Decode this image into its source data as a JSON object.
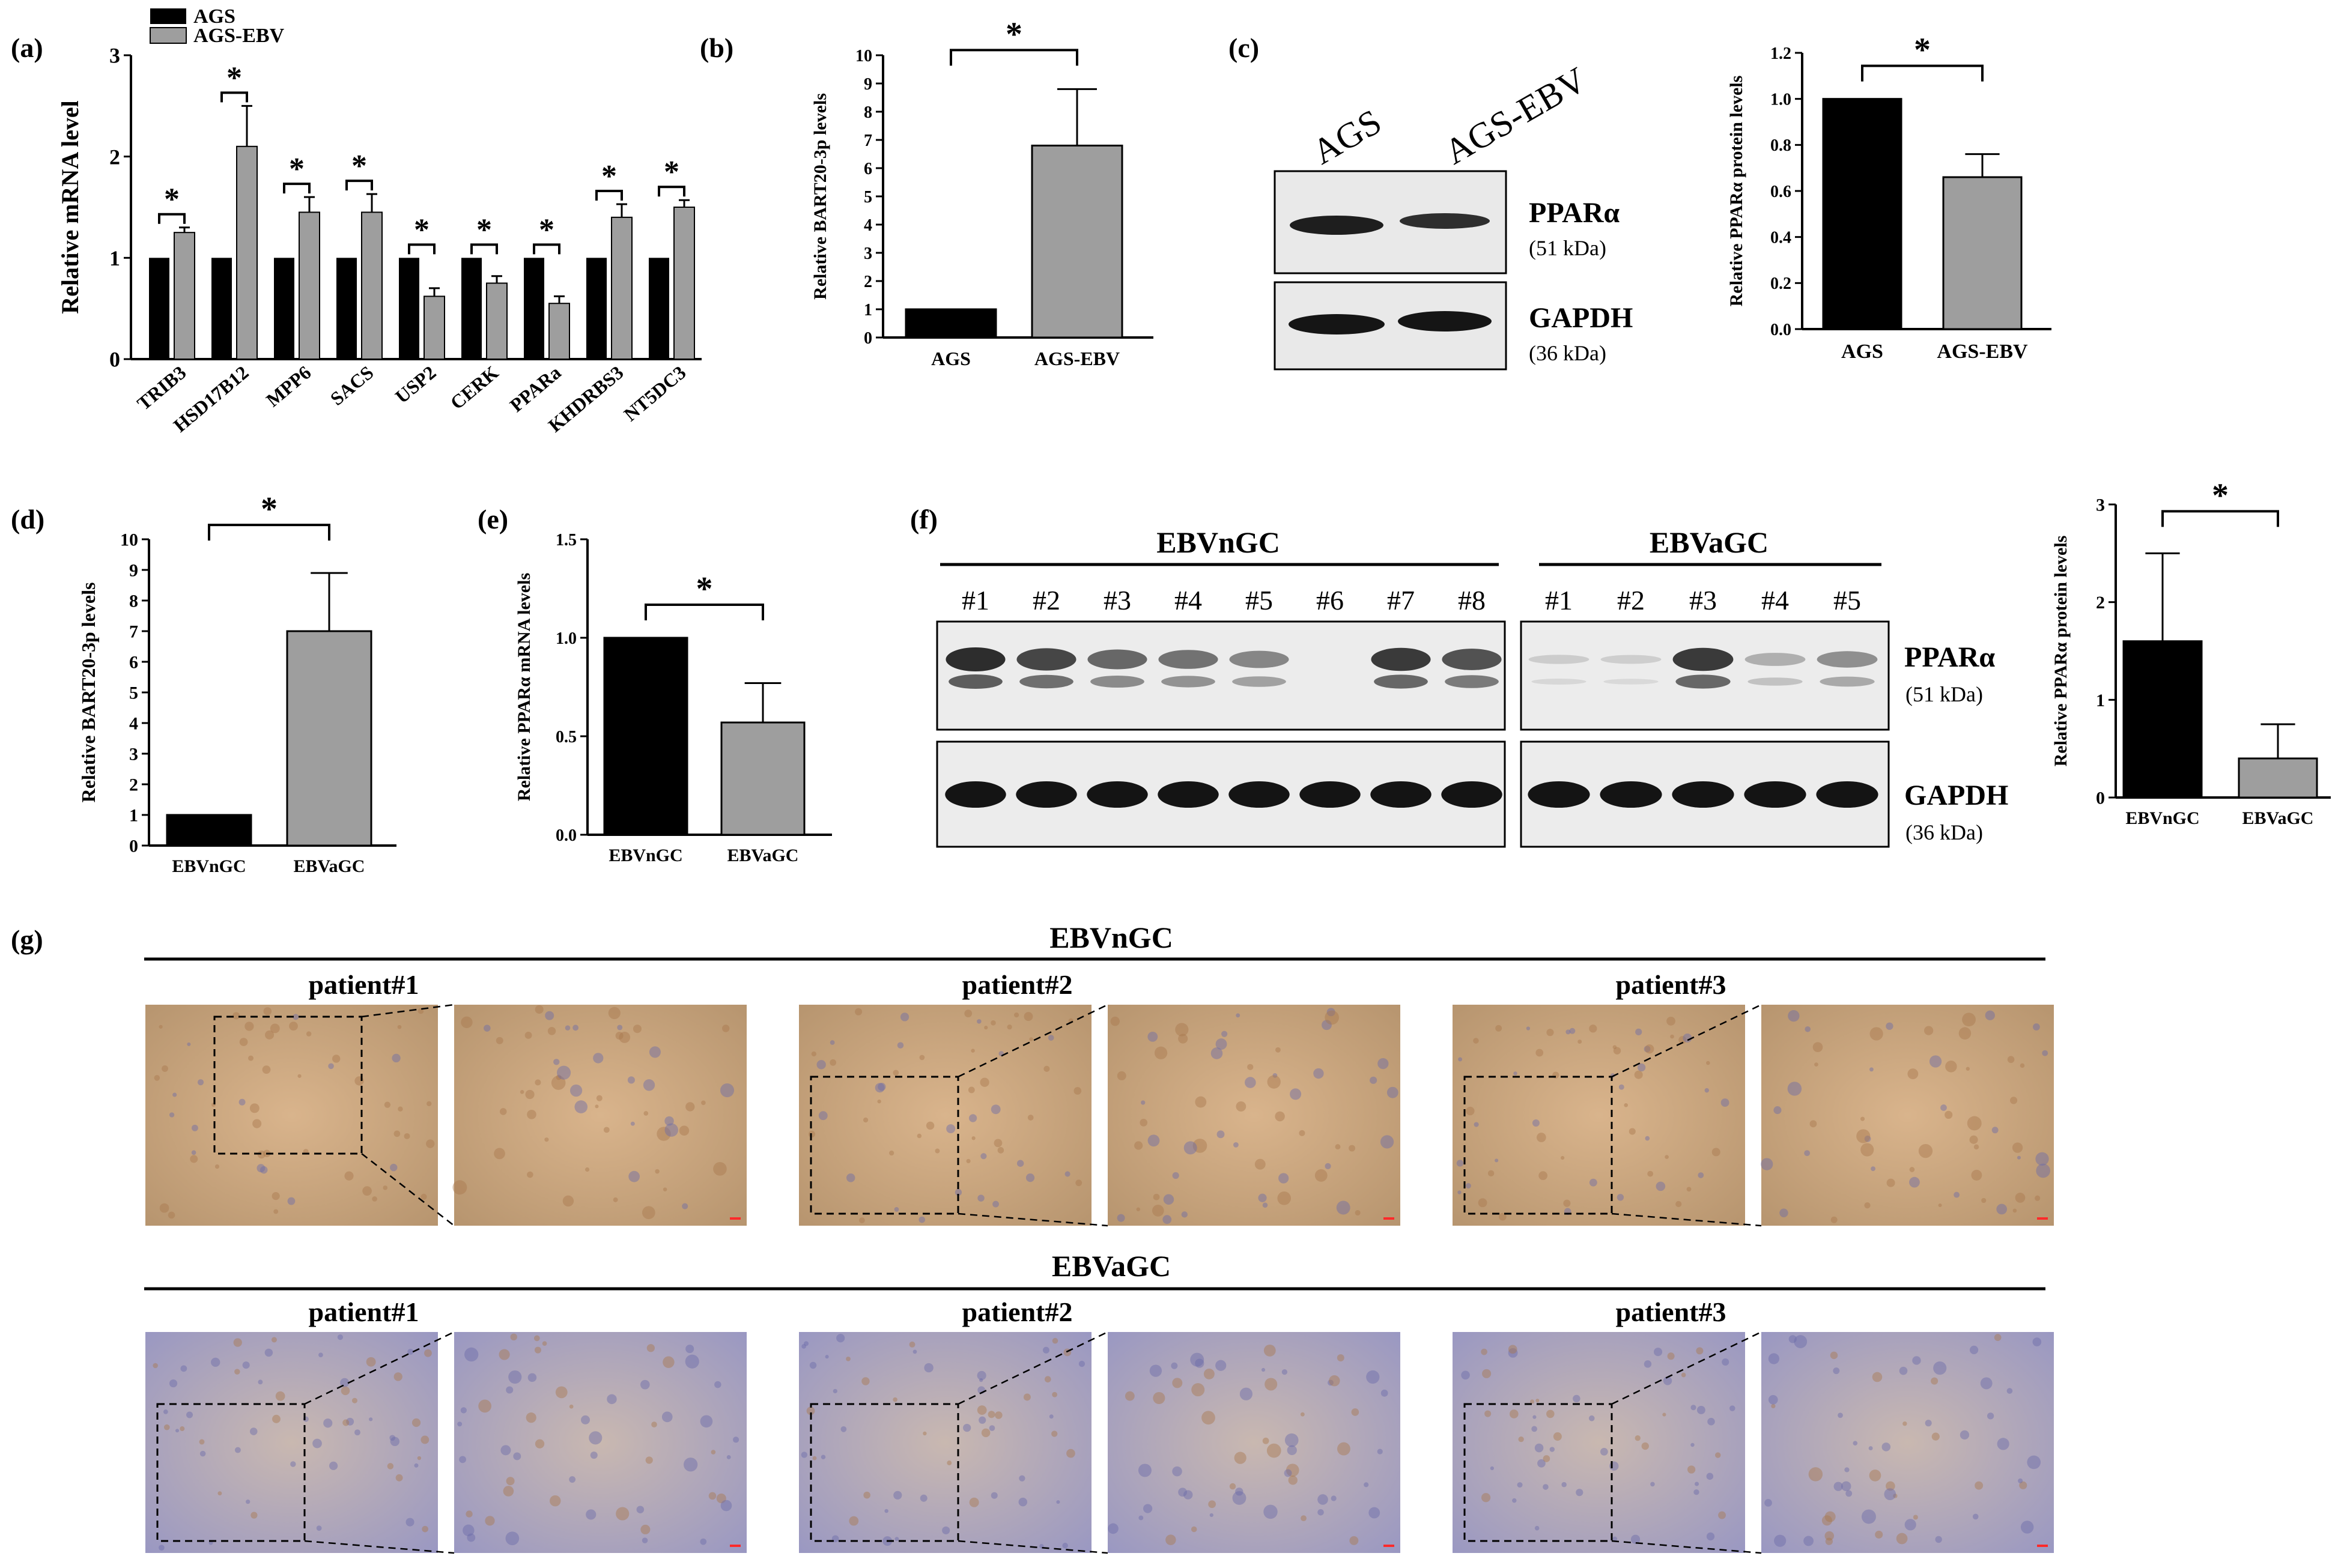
{
  "panel_letters": {
    "a": "(a)",
    "b": "(b)",
    "c": "(c)",
    "d": "(d)",
    "e": "(e)",
    "f": "(f)",
    "g": "(g)"
  },
  "colors": {
    "black_bar": "#000000",
    "grey_bar": "#9e9e9e",
    "blot_bg": "#e9e9e9",
    "stain_brown": "#c8a27a",
    "stain_blue": "#8c8fc0",
    "scale_bar": "#ff2a2a"
  },
  "panel_a": {
    "legend": [
      "AGS",
      "AGS-EBV"
    ],
    "ylabel": "Relative mRNA level",
    "yticks": [
      "0",
      "1",
      "2",
      "3"
    ],
    "star": "*"
  },
  "panel_b": {
    "ylabel": "Relative BART20-3p levels",
    "star": "*"
  },
  "panel_c_blot": {
    "columns": [
      "AGS",
      "AGS-EBV"
    ],
    "bands": [
      {
        "name": "PPARα",
        "size": "(51 kDa)"
      },
      {
        "name": "GAPDH",
        "size": "(36 kDa)"
      }
    ]
  },
  "panel_c_chart": {
    "ylabel": "Relative PPARα protein levels",
    "star": "*"
  },
  "panel_d": {
    "ylabel": "Relative BART20-3p levels",
    "star": "*"
  },
  "panel_e": {
    "ylabel": "Relative PPARα mRNA levels",
    "star": "*"
  },
  "panel_f_blot": {
    "groups": [
      {
        "title": "EBVnGC",
        "lanes": [
          "#1",
          "#2",
          "#3",
          "#4",
          "#5",
          "#6",
          "#7",
          "#8"
        ],
        "ppar": [
          1.0,
          0.9,
          0.75,
          0.7,
          0.6,
          0.05,
          0.95,
          0.85
        ]
      },
      {
        "title": "EBVaGC",
        "lanes": [
          "#1",
          "#2",
          "#3",
          "#4",
          "#5"
        ],
        "ppar": [
          0.12,
          0.1,
          0.95,
          0.35,
          0.55
        ]
      }
    ],
    "bands": [
      {
        "name": "PPARα",
        "size": "(51 kDa)"
      },
      {
        "name": "GAPDH",
        "size": "(36 kDa)"
      }
    ]
  },
  "panel_f_chart": {
    "ylabel": "Relative PPARα protein levels",
    "star": "*"
  },
  "panel_g": {
    "rows": [
      {
        "title": "EBVnGC",
        "patients": [
          "patient#1",
          "patient#2",
          "patient#3"
        ]
      },
      {
        "title": "EBVaGC",
        "patients": [
          "patient#1",
          "patient#2",
          "patient#3"
        ]
      }
    ]
  },
  "chart_data": [
    {
      "type": "bar",
      "panel": "a",
      "categories": [
        "TRIB3",
        "HSD17B12",
        "MPP6",
        "SACS",
        "USP2",
        "CERK",
        "PPARa",
        "KHDRBS3",
        "NT5DC3"
      ],
      "series": [
        {
          "name": "AGS",
          "values": [
            1,
            1,
            1,
            1,
            1,
            1,
            1,
            1,
            1
          ]
        },
        {
          "name": "AGS-EBV",
          "values": [
            1.25,
            2.1,
            1.45,
            1.45,
            0.62,
            0.75,
            0.55,
            1.4,
            1.5
          ],
          "errors": [
            0.05,
            0.4,
            0.15,
            0.18,
            0.08,
            0.07,
            0.07,
            0.13,
            0.07
          ]
        }
      ],
      "ylabel": "Relative mRNA level",
      "ylim": [
        0,
        3
      ]
    },
    {
      "type": "bar",
      "panel": "b",
      "categories": [
        "AGS",
        "AGS-EBV"
      ],
      "values": [
        1,
        6.8
      ],
      "errors": [
        0,
        2.0
      ],
      "ylabel": "Relative BART20-3p levels",
      "ylim": [
        0,
        10
      ],
      "yticks": [
        "0",
        "1",
        "2",
        "3",
        "4",
        "5",
        "6",
        "7",
        "8",
        "9",
        "10"
      ]
    },
    {
      "type": "bar",
      "panel": "c",
      "categories": [
        "AGS",
        "AGS-EBV"
      ],
      "values": [
        1.0,
        0.66
      ],
      "errors": [
        0,
        0.1
      ],
      "ylabel": "Relative PPARα protein levels",
      "ylim": [
        0,
        1.2
      ],
      "yticks": [
        "0.0",
        "0.2",
        "0.4",
        "0.6",
        "0.8",
        "1.0",
        "1.2"
      ]
    },
    {
      "type": "bar",
      "panel": "d",
      "categories": [
        "EBVnGC",
        "EBVaGC"
      ],
      "values": [
        1,
        7.0
      ],
      "errors": [
        0,
        1.9
      ],
      "ylabel": "Relative BART20-3p levels",
      "ylim": [
        0,
        10
      ],
      "yticks": [
        "0",
        "1",
        "2",
        "3",
        "4",
        "5",
        "6",
        "7",
        "8",
        "9",
        "10"
      ]
    },
    {
      "type": "bar",
      "panel": "e",
      "categories": [
        "EBVnGC",
        "EBVaGC"
      ],
      "values": [
        1.0,
        0.57
      ],
      "errors": [
        0,
        0.2
      ],
      "ylabel": "Relative PPARα mRNA levels",
      "ylim": [
        0,
        1.5
      ],
      "yticks": [
        "0.0",
        "0.5",
        "1.0",
        "1.5"
      ]
    },
    {
      "type": "bar",
      "panel": "f",
      "categories": [
        "EBVnGC",
        "EBVaGC"
      ],
      "values": [
        1.6,
        0.4
      ],
      "errors": [
        0.9,
        0.35
      ],
      "ylabel": "Relative PPARα protein levels",
      "ylim": [
        0,
        3
      ],
      "yticks": [
        "0",
        "1",
        "2",
        "3"
      ]
    }
  ]
}
